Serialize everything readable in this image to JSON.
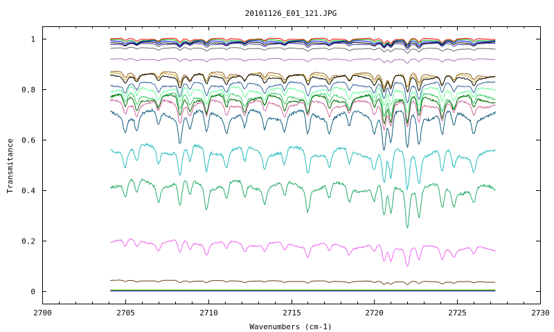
{
  "chart_data": {
    "type": "line",
    "title": "20101126_E01_121.JPG",
    "xlabel": "Wavenumbers (cm-1)",
    "ylabel": "Transmitance",
    "xlim": [
      2700,
      2730
    ],
    "ylim": [
      -0.05,
      1.05
    ],
    "x_ticks": [
      "2700",
      "2705",
      "2710",
      "2715",
      "2720",
      "2725",
      "2730"
    ],
    "y_ticks": [
      "0",
      "0.2",
      "0.4",
      "0.6",
      "0.8",
      "1"
    ],
    "grid": false,
    "legend": "none",
    "x_range_of_data": [
      2704.1,
      2727.3
    ],
    "dip_wavenumbers": [
      2705.0,
      2705.7,
      2707.0,
      2708.3,
      2708.9,
      2709.9,
      2711.1,
      2712.2,
      2713.4,
      2714.6,
      2716.0,
      2717.3,
      2718.5,
      2720.0,
      2720.6,
      2721.0,
      2722.0,
      2722.7,
      2724.1,
      2724.8,
      2726.0
    ],
    "series": [
      {
        "color": "#ff0000",
        "start": 1.0,
        "end": 1.0,
        "dip": 0.01
      },
      {
        "color": "#00aa00",
        "start": 0.995,
        "end": 0.995,
        "dip": 0.01
      },
      {
        "color": "#0000ff",
        "start": 0.99,
        "end": 0.99,
        "dip": 0.01
      },
      {
        "color": "#000000",
        "start": 0.985,
        "end": 0.985,
        "dip": 0.01
      },
      {
        "color": "#333399",
        "start": 0.98,
        "end": 0.98,
        "dip": 0.01
      },
      {
        "color": "#666666",
        "start": 0.965,
        "end": 0.96,
        "dip": 0.008
      },
      {
        "color": "#a070b0",
        "start": 0.92,
        "end": 0.92,
        "dip": 0.008
      },
      {
        "color": "#996633",
        "start": 0.865,
        "end": 0.855,
        "dip": 0.025
      },
      {
        "color": "#ccaa33",
        "start": 0.86,
        "end": 0.85,
        "dip": 0.025
      },
      {
        "color": "#000000",
        "start": 0.855,
        "end": 0.845,
        "dip": 0.03
      },
      {
        "color": "#336699",
        "start": 0.82,
        "end": 0.82,
        "dip": 0.035
      },
      {
        "color": "#66ff99",
        "start": 0.8,
        "end": 0.795,
        "dip": 0.04
      },
      {
        "color": "#33cc66",
        "start": 0.775,
        "end": 0.77,
        "dip": 0.045
      },
      {
        "color": "#006600",
        "start": 0.765,
        "end": 0.76,
        "dip": 0.05
      },
      {
        "color": "#cc6699",
        "start": 0.745,
        "end": 0.74,
        "dip": 0.05
      },
      {
        "color": "#0e5a7a",
        "start": 0.7,
        "end": 0.695,
        "dip": 0.07
      },
      {
        "color": "#22bbbb",
        "start": 0.565,
        "end": 0.54,
        "dip": 0.07
      },
      {
        "color": "#22aa66",
        "start": 0.43,
        "end": 0.4,
        "dip": 0.07
      },
      {
        "color": "#ee66ee",
        "start": 0.2,
        "end": 0.165,
        "dip": 0.035
      },
      {
        "color": "#664411",
        "start": 0.042,
        "end": 0.036,
        "dip": 0.006
      },
      {
        "color": "#009900",
        "start": 0.004,
        "end": 0.004,
        "dip": 0.0
      },
      {
        "color": "#cccc00",
        "start": 0.002,
        "end": 0.002,
        "dip": 0.0
      },
      {
        "color": "#0000cc",
        "start": 0.0,
        "end": 0.0,
        "dip": 0.0
      }
    ]
  }
}
